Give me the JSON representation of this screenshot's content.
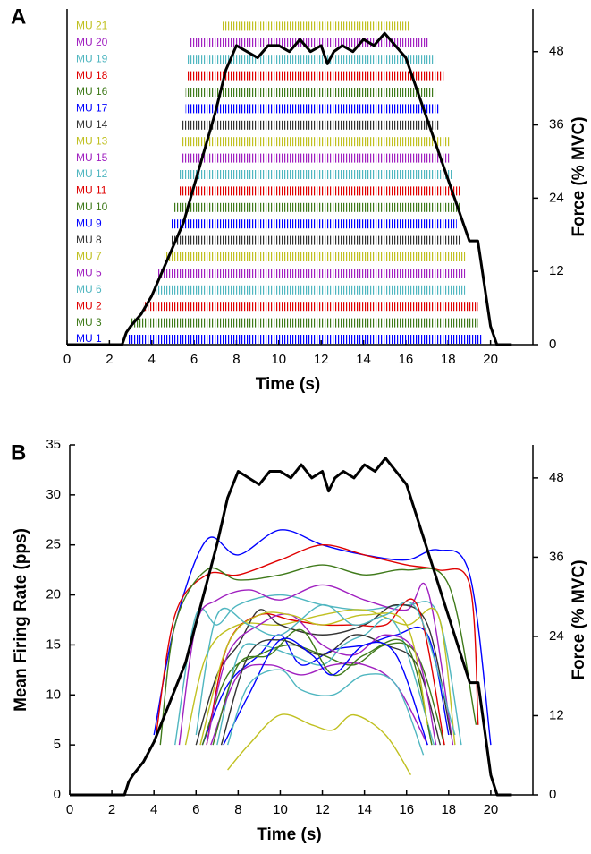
{
  "chart_data": [
    {
      "type": "raster",
      "panel_label": "A",
      "xlabel": "Time (s)",
      "y2label": "Force (% MVC)",
      "xlim": [
        0,
        22
      ],
      "xticks": [
        0,
        2,
        4,
        6,
        8,
        10,
        12,
        14,
        16,
        18,
        20
      ],
      "y2lim": [
        0,
        55
      ],
      "y2ticks": [
        0,
        12,
        24,
        36,
        48
      ],
      "units": [
        {
          "name": "MU 1",
          "color": "#0000ff",
          "start": 2.9,
          "end": 19.6
        },
        {
          "name": "MU 3",
          "color": "#3f7a1a",
          "start": 3.0,
          "end": 19.4
        },
        {
          "name": "MU 2",
          "color": "#e00000",
          "start": 3.6,
          "end": 19.4
        },
        {
          "name": "MU 6",
          "color": "#4fb6c0",
          "start": 4.1,
          "end": 18.8
        },
        {
          "name": "MU 5",
          "color": "#a020c0",
          "start": 4.3,
          "end": 18.8
        },
        {
          "name": "MU 7",
          "color": "#c0c020",
          "start": 4.6,
          "end": 18.8
        },
        {
          "name": "MU 8",
          "color": "#333333",
          "start": 4.9,
          "end": 18.6
        },
        {
          "name": "MU 9",
          "color": "#0000ff",
          "start": 4.9,
          "end": 18.4
        },
        {
          "name": "MU 10",
          "color": "#3f7a1a",
          "start": 5.0,
          "end": 18.6
        },
        {
          "name": "MU 11",
          "color": "#e00000",
          "start": 5.3,
          "end": 18.6
        },
        {
          "name": "MU 12",
          "color": "#4fb6c0",
          "start": 5.3,
          "end": 18.2
        },
        {
          "name": "MU 15",
          "color": "#a020c0",
          "start": 5.4,
          "end": 18.1
        },
        {
          "name": "MU 13",
          "color": "#c0c020",
          "start": 5.4,
          "end": 18.1
        },
        {
          "name": "MU 14",
          "color": "#333333",
          "start": 5.4,
          "end": 17.6
        },
        {
          "name": "MU 17",
          "color": "#0000ff",
          "start": 5.6,
          "end": 17.6
        },
        {
          "name": "MU 16",
          "color": "#3f7a1a",
          "start": 5.6,
          "end": 17.4
        },
        {
          "name": "MU 18",
          "color": "#e00000",
          "start": 5.7,
          "end": 17.8
        },
        {
          "name": "MU 19",
          "color": "#4fb6c0",
          "start": 5.7,
          "end": 17.4
        },
        {
          "name": "MU 20",
          "color": "#a020c0",
          "start": 5.8,
          "end": 17.1
        },
        {
          "name": "MU 21",
          "color": "#c0c020",
          "start": 7.3,
          "end": 16.2
        }
      ],
      "force": {
        "color": "#000000",
        "x": [
          0,
          2.6,
          2.8,
          3,
          3.5,
          4,
          5,
          5.5,
          6,
          6.5,
          7,
          7.5,
          8,
          8.5,
          9,
          9.5,
          10,
          10.5,
          11,
          11.5,
          12,
          12.3,
          12.6,
          13,
          13.5,
          14,
          14.5,
          15,
          15.5,
          16,
          16.5,
          17,
          17.5,
          18,
          18.5,
          19,
          19.4,
          19.7,
          20,
          20.3,
          21
        ],
        "values": [
          0,
          0,
          2,
          3,
          5,
          8,
          16,
          20,
          26,
          32,
          38,
          45,
          49,
          48,
          47,
          49,
          49,
          48,
          50,
          48,
          49,
          46,
          48,
          49,
          48,
          50,
          49,
          51,
          49,
          47,
          42,
          37,
          32,
          27,
          22,
          17,
          17,
          10,
          3,
          0,
          0
        ]
      }
    },
    {
      "type": "line",
      "panel_label": "B",
      "xlabel": "Time (s)",
      "ylabel": "Mean Firing Rate (pps)",
      "y2label": "Force (% MVC)",
      "xlim": [
        0,
        22
      ],
      "xticks": [
        0,
        2,
        4,
        6,
        8,
        10,
        12,
        14,
        16,
        18,
        20
      ],
      "ylim": [
        0,
        35
      ],
      "yticks": [
        0,
        5,
        10,
        15,
        20,
        25,
        30,
        35
      ],
      "y2lim": [
        0,
        53
      ],
      "y2ticks": [
        0,
        12,
        24,
        36,
        48
      ],
      "series": [
        {
          "color": "#0000ff",
          "x": [
            4.0,
            5,
            6.5,
            8,
            10,
            12,
            14,
            16,
            17.5,
            19,
            20
          ],
          "values": [
            6,
            17,
            25.5,
            24,
            26.5,
            25,
            24,
            23.5,
            24.5,
            22,
            5
          ]
        },
        {
          "color": "#e00000",
          "x": [
            4.1,
            5,
            6.5,
            8,
            10,
            12,
            14,
            16,
            17.5,
            19,
            19.4
          ],
          "values": [
            6,
            18,
            22,
            22,
            23.5,
            25,
            24,
            23,
            22.5,
            21,
            7
          ]
        },
        {
          "color": "#3f7a1a",
          "x": [
            4.3,
            5,
            6.5,
            8,
            10,
            12,
            14,
            16,
            18,
            19.3
          ],
          "values": [
            5,
            17,
            22.5,
            21.5,
            22,
            23,
            22,
            22.5,
            21,
            7
          ]
        },
        {
          "color": "#4fb6c0",
          "x": [
            5,
            6,
            7,
            8,
            10,
            12,
            14,
            16,
            17.5,
            18.6
          ],
          "values": [
            5,
            18,
            17,
            19,
            20,
            19,
            18.5,
            19,
            18,
            5
          ]
        },
        {
          "color": "#a020c0",
          "x": [
            5.2,
            6,
            7,
            8.5,
            10,
            12,
            14,
            16,
            17,
            18.2
          ],
          "values": [
            5,
            17,
            19.5,
            20.5,
            19.5,
            21,
            19.5,
            18.5,
            20.5,
            5
          ]
        },
        {
          "color": "#c0c020",
          "x": [
            5.5,
            6.5,
            8,
            10,
            12,
            14,
            16,
            17.5,
            18.3
          ],
          "values": [
            5,
            14,
            17,
            17,
            18,
            18.5,
            17,
            18,
            5
          ]
        },
        {
          "color": "#333333",
          "x": [
            6,
            7,
            8,
            9,
            10,
            12,
            14,
            15.5,
            17,
            18.1
          ],
          "values": [
            5,
            12,
            15,
            18.5,
            17,
            16,
            17,
            19,
            17,
            6
          ]
        },
        {
          "color": "#0000ff",
          "x": [
            6.3,
            7.5,
            9,
            10,
            11,
            12.5,
            14,
            15.5,
            17,
            18
          ],
          "values": [
            5,
            11,
            14,
            16,
            13,
            14.5,
            15,
            16,
            16,
            6
          ]
        },
        {
          "color": "#3f7a1a",
          "x": [
            6.3,
            7.5,
            9,
            10.5,
            12,
            13.5,
            15,
            16.5,
            17.8
          ],
          "values": [
            5,
            12,
            14,
            15,
            14,
            13,
            15,
            14,
            5
          ]
        },
        {
          "color": "#e00000",
          "x": [
            6.5,
            7.5,
            9,
            10.5,
            12,
            13.5,
            15,
            16.5,
            17.8
          ],
          "values": [
            5,
            15,
            18,
            17.5,
            17,
            17,
            17,
            19,
            5
          ]
        },
        {
          "color": "#4fb6c0",
          "x": [
            7,
            8,
            9,
            10.5,
            12,
            13,
            14,
            15.5,
            17.3
          ],
          "values": [
            5,
            14,
            15,
            14,
            13,
            15,
            16,
            17,
            5
          ]
        },
        {
          "color": "#a020c0",
          "x": [
            6.7,
            8,
            9.5,
            11,
            12.5,
            14,
            15.5,
            17
          ],
          "values": [
            5,
            12,
            13,
            12,
            13,
            13,
            11,
            5
          ]
        },
        {
          "color": "#c0c020",
          "x": [
            7.5,
            8.5,
            10,
            11.5,
            12.5,
            13.5,
            15,
            16.2
          ],
          "values": [
            2.5,
            5,
            8,
            7,
            6.5,
            8,
            6,
            2
          ]
        },
        {
          "color": "#333333",
          "x": [
            7.2,
            8.5,
            10,
            12,
            13.5,
            15,
            16.5,
            17.6
          ],
          "values": [
            5,
            14,
            15.5,
            14,
            16,
            15,
            13,
            5
          ]
        },
        {
          "color": "#a020c0",
          "x": [
            6.5,
            7.5,
            9,
            10.5,
            12,
            13.5,
            15,
            16.5,
            17.4
          ],
          "values": [
            5,
            14,
            17,
            18,
            15,
            14,
            16,
            14,
            5
          ]
        },
        {
          "color": "#3f7a1a",
          "x": [
            6.8,
            8,
            9.5,
            11,
            12.5,
            14,
            16,
            17.2
          ],
          "values": [
            5,
            13,
            14,
            16.5,
            12,
            14,
            15,
            5
          ]
        },
        {
          "color": "#0000ff",
          "x": [
            7.3,
            8.5,
            10,
            11.5,
            12.5,
            14,
            15.5,
            17
          ],
          "values": [
            5,
            10,
            15.5,
            14,
            12,
            15,
            14,
            5
          ]
        },
        {
          "color": "#4fb6c0",
          "x": [
            7.5,
            8.5,
            10,
            11,
            12.5,
            14,
            15.5,
            16.8
          ],
          "values": [
            5,
            11,
            12.5,
            10.5,
            10,
            12,
            11,
            4
          ]
        },
        {
          "color": "#c0c020",
          "x": [
            6.2,
            7.5,
            9,
            10.5,
            12,
            14,
            16,
            17
          ],
          "values": [
            5,
            15,
            18,
            18,
            17,
            18,
            17,
            7
          ]
        },
        {
          "color": "#4fb6c0",
          "x": [
            6,
            7,
            8.5,
            10,
            12,
            13.5,
            15,
            16.5,
            18.3
          ],
          "values": [
            6,
            18,
            17,
            16,
            19,
            17,
            18,
            18.5,
            6
          ]
        },
        {
          "color": "#000000",
          "axis": "y2",
          "x": [
            0,
            2.6,
            2.8,
            3,
            3.5,
            4,
            5,
            5.5,
            6,
            6.5,
            7,
            7.5,
            8,
            8.5,
            9,
            9.5,
            10,
            10.5,
            11,
            11.5,
            12,
            12.3,
            12.6,
            13,
            13.5,
            14,
            14.5,
            15,
            15.5,
            16,
            16.5,
            17,
            17.5,
            18,
            18.5,
            19,
            19.4,
            19.7,
            20,
            20.3,
            21
          ],
          "values": [
            0,
            0,
            2,
            3,
            5,
            8,
            16,
            20,
            26,
            32,
            38,
            45,
            49,
            48,
            47,
            49,
            49,
            48,
            50,
            48,
            49,
            46,
            48,
            49,
            48,
            50,
            49,
            51,
            49,
            47,
            42,
            37,
            32,
            27,
            22,
            17,
            17,
            10,
            3,
            0,
            0
          ]
        }
      ]
    }
  ]
}
